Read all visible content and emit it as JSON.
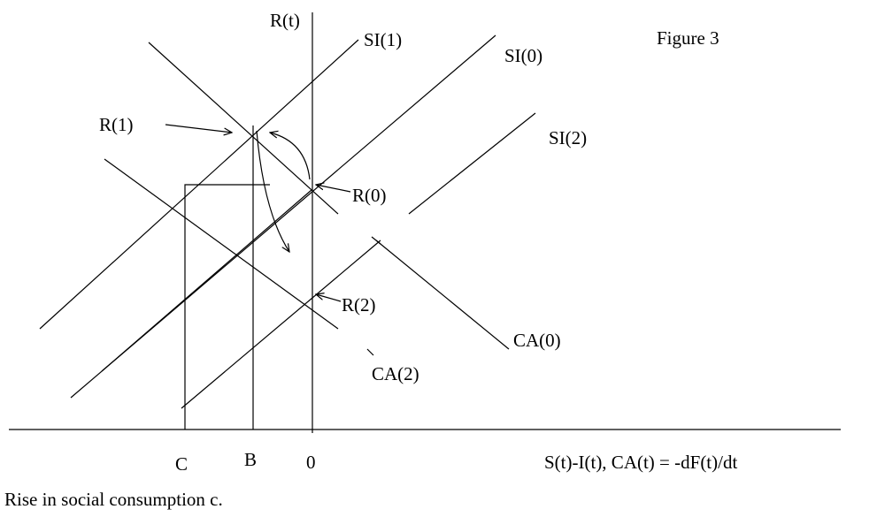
{
  "figure": {
    "title": "Figure 3",
    "caption": "Rise in social consumption c.",
    "axes": {
      "y_label": "R(t)",
      "x_label": "S(t)-I(t), CA(t) = -dF(t)/dt"
    },
    "curves": {
      "si1": "SI(1)",
      "si0": "SI(0)",
      "si2": "SI(2)",
      "ca0": "CA(0)",
      "ca2": "CA(2)"
    },
    "points": {
      "r1": "R(1)",
      "r0": "R(0)",
      "r2": "R(2)"
    },
    "x_marks": {
      "c": "C",
      "b": "B",
      "zero": "0"
    }
  }
}
